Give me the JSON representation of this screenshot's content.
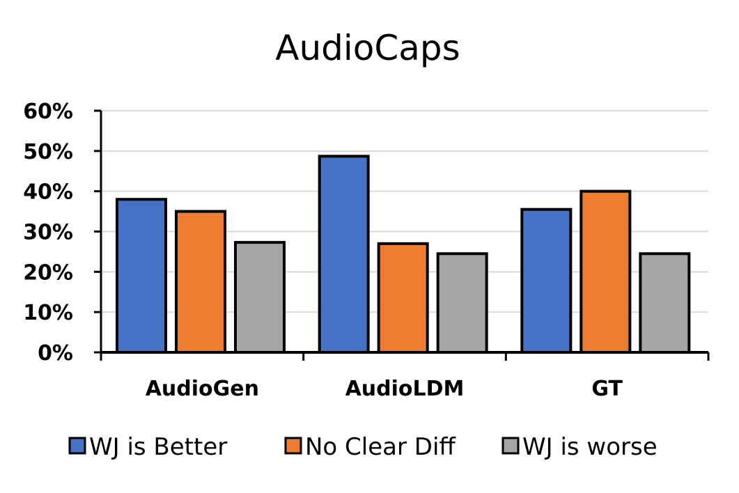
{
  "chart_data": {
    "type": "bar",
    "title": "AudioCaps",
    "xlabel": "",
    "ylabel": "",
    "categories": [
      "AudioGen",
      "AudioLDM",
      "GT"
    ],
    "series": [
      {
        "name": "WJ is Better",
        "color": "#4472C4",
        "values": [
          38,
          48.7,
          35.5
        ]
      },
      {
        "name": "No Clear Diff",
        "color": "#ED7D31",
        "values": [
          35,
          27,
          40
        ]
      },
      {
        "name": "WJ is worse",
        "color": "#A5A5A5",
        "values": [
          27.3,
          24.5,
          24.5
        ]
      }
    ],
    "ylim": [
      0,
      60
    ],
    "yticks": [
      0,
      10,
      20,
      30,
      40,
      50,
      60
    ],
    "ytick_labels": [
      "0%",
      "10%",
      "20%",
      "30%",
      "40%",
      "50%",
      "60%"
    ],
    "grid": true,
    "legend_position": "bottom"
  }
}
